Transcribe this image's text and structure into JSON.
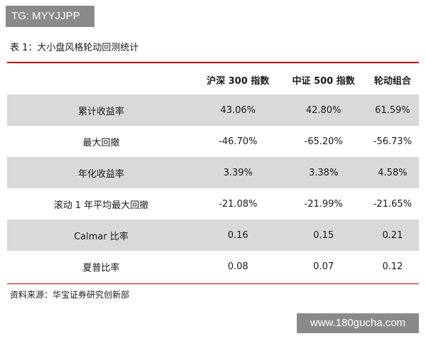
{
  "watermark_top": "TG: MYYJJPP",
  "caption": "表 1：大小盘风格轮动回测统计",
  "table": {
    "headers": [
      "",
      "沪深 300 指数",
      "中证 500 指数",
      "轮动组合"
    ],
    "rows": [
      {
        "label": "累计收益率",
        "values": [
          "43.06%",
          "42.80%",
          "61.59%"
        ]
      },
      {
        "label": "最大回撤",
        "values": [
          "-46.70%",
          "-65.20%",
          "-56.73%"
        ]
      },
      {
        "label": "年化收益率",
        "values": [
          "3.39%",
          "3.38%",
          "4.58%"
        ]
      },
      {
        "label": "滚动 1 年平均最大回撤",
        "values": [
          "-21.08%",
          "-21.99%",
          "-21.65%"
        ]
      },
      {
        "label": "Calmar 比率",
        "values": [
          "0.16",
          "0.15",
          "0.21"
        ]
      },
      {
        "label": "夏普比率",
        "values": [
          "0.08",
          "0.07",
          "0.12"
        ]
      }
    ]
  },
  "source": "资料来源：华宝证券研究创新部",
  "watermark_bottom": "www.180gucha.com",
  "colors": {
    "rule": "#c00000",
    "shade": "#d9d9d9",
    "watermark_bg": "#8a8a8a"
  }
}
